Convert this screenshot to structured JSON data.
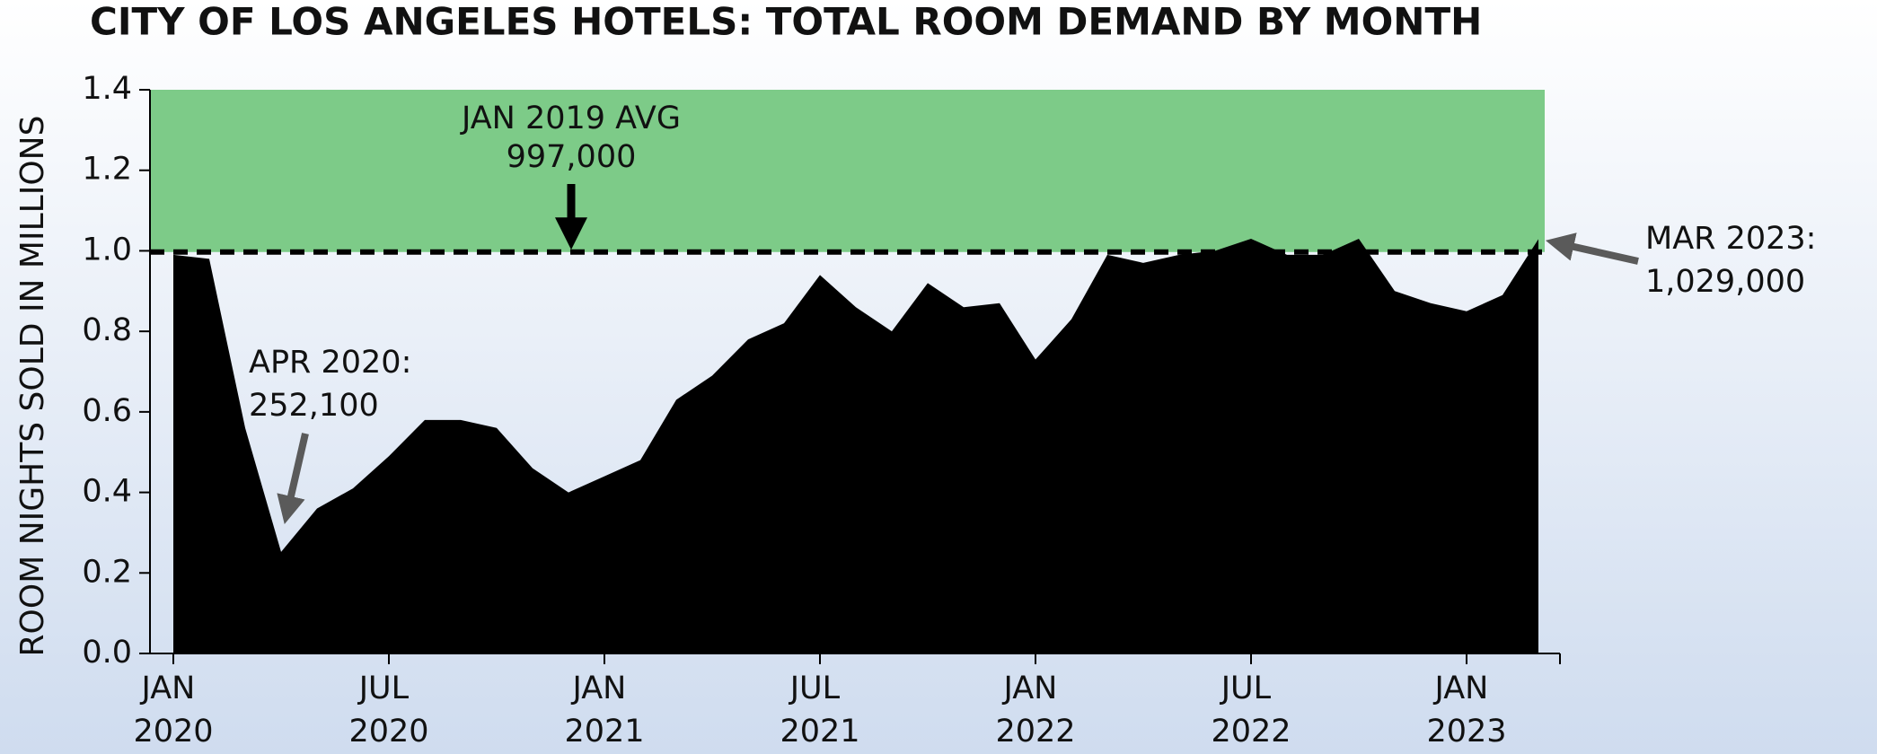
{
  "chart_data": {
    "type": "area",
    "title": "CITY OF LOS ANGELES HOTELS: TOTAL ROOM DEMAND BY MONTH",
    "y_label": "ROOM NIGHTS SOLD IN MILLIONS",
    "categories": [
      "JAN 2020",
      null,
      null,
      null,
      null,
      null,
      "JUL 2020",
      null,
      null,
      null,
      null,
      null,
      "JAN 2021",
      null,
      null,
      null,
      null,
      null,
      "JUL 2021",
      null,
      null,
      null,
      null,
      null,
      "JAN 2022",
      null,
      null,
      null,
      null,
      null,
      "JUL 2022",
      null,
      null,
      null,
      null,
      null,
      "JAN 2023",
      null,
      null
    ],
    "values": [
      0.99,
      0.98,
      0.56,
      0.2521,
      0.36,
      0.41,
      0.49,
      0.58,
      0.58,
      0.56,
      0.46,
      0.4,
      0.44,
      0.48,
      0.63,
      0.69,
      0.78,
      0.82,
      0.94,
      0.86,
      0.8,
      0.92,
      0.86,
      0.87,
      0.73,
      0.83,
      0.99,
      0.97,
      0.99,
      1.0,
      1.03,
      0.99,
      0.99,
      1.03,
      0.9,
      0.87,
      0.85,
      0.89,
      1.029
    ],
    "color": "#000000",
    "ylim": [
      0,
      1.4
    ],
    "yticks": [
      {
        "value": 0,
        "label": "0.0"
      },
      0.2,
      0.4,
      0.6,
      0.8,
      {
        "value": 1,
        "label": "1.0"
      },
      1.2,
      1.4
    ],
    "reference_line": {
      "value": 0.997,
      "label": [
        "JAN 2019 AVG",
        "997,000"
      ],
      "band_color": "#7dcb88"
    },
    "annotations": [
      {
        "text": [
          "APR 2020:",
          "252,100"
        ]
      },
      {
        "text": [
          "MAR 2023:",
          "1,029,000"
        ]
      }
    ]
  }
}
